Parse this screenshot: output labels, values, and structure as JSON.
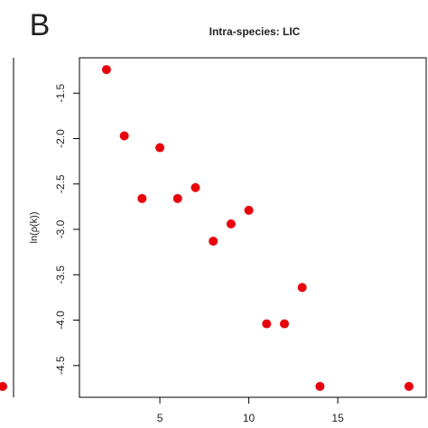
{
  "panel_label": "B",
  "chart_data": {
    "type": "scatter",
    "title": "Intra-species: LIC",
    "y_label": "ln(ρ(k))",
    "x": [
      2,
      3,
      4,
      5,
      6,
      7,
      8,
      9,
      10,
      11,
      12,
      13,
      14,
      19
    ],
    "values": [
      -1.24,
      -1.97,
      -2.66,
      -2.1,
      -2.66,
      -2.54,
      -3.13,
      -2.94,
      -2.79,
      -4.04,
      -4.04,
      -3.64,
      -4.73,
      -4.73
    ],
    "color": "#e8000b",
    "xlim": [
      0.48,
      19.97
    ],
    "ylim": [
      -4.85,
      -1.11
    ],
    "xticks": [
      5,
      10,
      15
    ],
    "yticks": [
      -1.5,
      {
        "value": -2,
        "label": "-2.0"
      },
      -2.5,
      {
        "value": -3,
        "label": "-3.0"
      },
      -3.5,
      {
        "value": -4,
        "label": "-4.0"
      },
      -4.5
    ]
  }
}
